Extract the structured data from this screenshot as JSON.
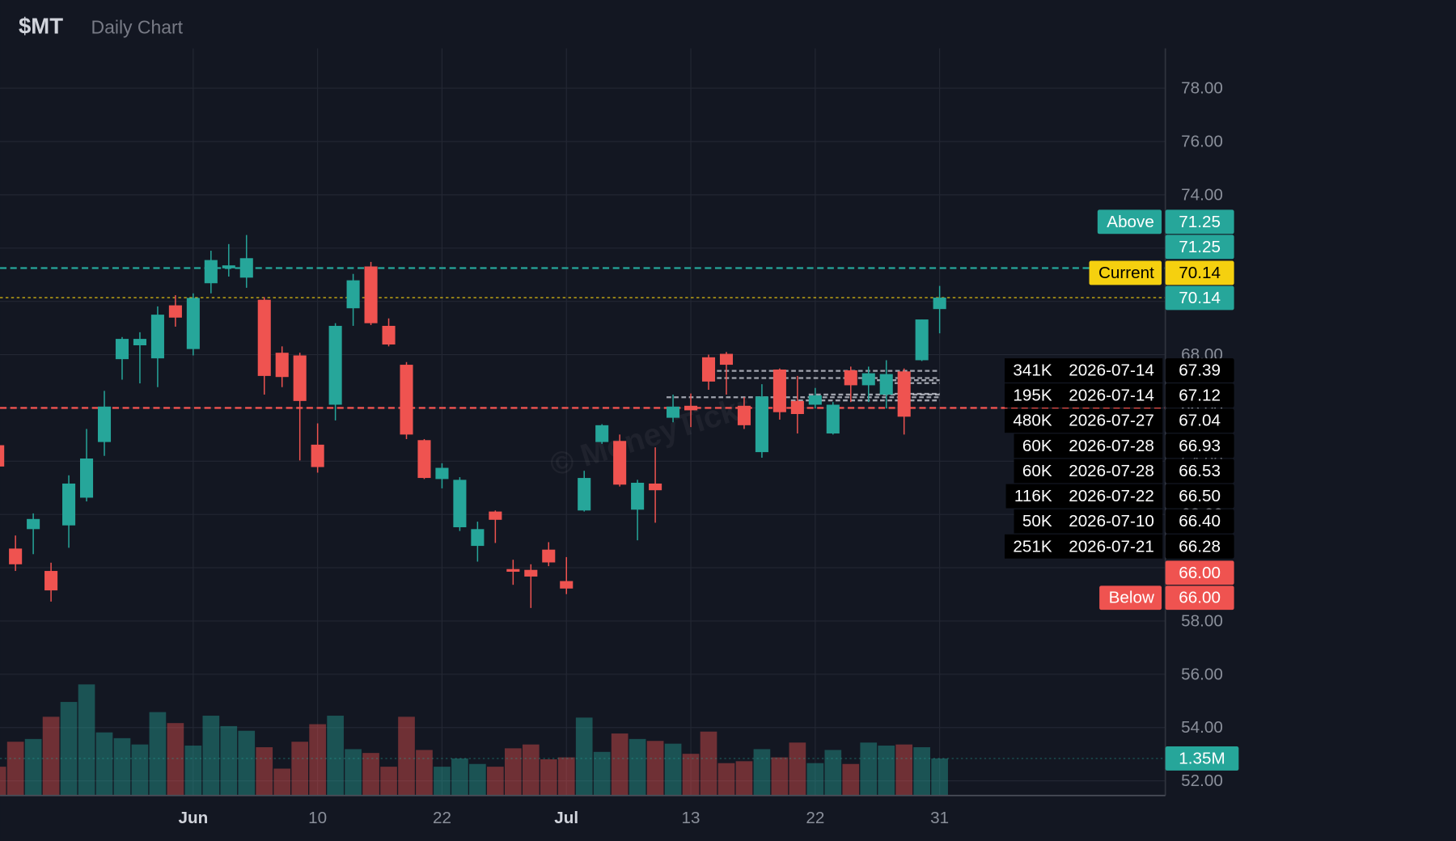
{
  "chart_data": {
    "type": "candlestick",
    "title": "$MT",
    "subtitle": "Daily Chart",
    "watermark": "© MoneyTickr",
    "categories": [
      "2026-05-14",
      "2026-05-15",
      "2026-05-18",
      "2026-05-19",
      "2026-05-20",
      "2026-05-21",
      "2026-05-22",
      "2026-05-26",
      "2026-05-27",
      "2026-05-28",
      "2026-05-29",
      "2026-06-01",
      "2026-06-02",
      "2026-06-03",
      "2026-06-04",
      "2026-06-05",
      "2026-06-08",
      "2026-06-09",
      "2026-06-10",
      "2026-06-11",
      "2026-06-12",
      "2026-06-15",
      "2026-06-16",
      "2026-06-17",
      "2026-06-18",
      "2026-06-22",
      "2026-06-23",
      "2026-06-24",
      "2026-06-25",
      "2026-06-26",
      "2026-06-29",
      "2026-06-30",
      "2026-07-01",
      "2026-07-02",
      "2026-07-06",
      "2026-07-07",
      "2026-07-08",
      "2026-07-09",
      "2026-07-10",
      "2026-07-13",
      "2026-07-14",
      "2026-07-15",
      "2026-07-16",
      "2026-07-17",
      "2026-07-20",
      "2026-07-21",
      "2026-07-22",
      "2026-07-23",
      "2026-07-24",
      "2026-07-27",
      "2026-07-28",
      "2026-07-29",
      "2026-07-30",
      "2026-07-31"
    ],
    "xticks": [
      {
        "value": "2026-06-01",
        "label": "Jun"
      },
      {
        "value": "2026-06-10",
        "label": "10"
      },
      {
        "value": "2026-06-22",
        "label": "22"
      },
      {
        "value": "2026-07-01",
        "label": "Jul"
      },
      {
        "value": "2026-07-13",
        "label": "13"
      },
      {
        "value": "2026-07-22",
        "label": "22"
      },
      {
        "value": "2026-07-31",
        "label": "31"
      }
    ],
    "open": [
      64.6,
      60.72,
      61.45,
      59.88,
      61.59,
      62.63,
      64.72,
      67.83,
      68.35,
      67.86,
      69.85,
      68.21,
      70.68,
      71.24,
      70.89,
      70.06,
      68.07,
      67.97,
      64.62,
      66.12,
      69.74,
      71.31,
      69.08,
      67.62,
      64.79,
      63.33,
      61.52,
      60.82,
      62.11,
      59.95,
      59.92,
      60.68,
      59.5,
      62.15,
      64.72,
      64.76,
      62.18,
      63.16,
      65.63,
      66.08,
      67.9,
      68.03,
      66.08,
      64.34,
      67.44,
      66.26,
      66.12,
      65.04,
      67.41,
      66.85,
      66.5,
      67.37,
      67.79,
      69.71
    ],
    "high": [
      64.7,
      61.21,
      62.04,
      60.19,
      63.47,
      65.21,
      66.64,
      68.66,
      68.84,
      69.81,
      70.23,
      70.3,
      71.9,
      72.15,
      72.49,
      70.16,
      68.31,
      68.07,
      65.42,
      69.18,
      71.03,
      71.48,
      69.36,
      67.72,
      64.83,
      63.92,
      63.4,
      61.73,
      62.15,
      60.3,
      60.13,
      60.96,
      60.4,
      63.64,
      65.39,
      65.0,
      63.3,
      64.52,
      66.5,
      66.54,
      68.0,
      68.1,
      66.4,
      66.89,
      67.48,
      67.2,
      66.75,
      66.22,
      67.55,
      67.55,
      67.79,
      67.48,
      69.32,
      70.58
    ],
    "low": [
      63.7,
      59.88,
      60.51,
      58.73,
      60.75,
      62.49,
      64.2,
      67.06,
      66.92,
      66.78,
      69.05,
      67.97,
      70.3,
      70.93,
      70.51,
      66.5,
      66.78,
      64.03,
      63.57,
      65.53,
      69.08,
      69.11,
      68.31,
      64.83,
      63.33,
      62.98,
      61.38,
      60.23,
      60.93,
      59.36,
      58.49,
      60.06,
      59.01,
      62.11,
      64.65,
      63.05,
      61.03,
      61.69,
      65.46,
      65.28,
      66.68,
      66.5,
      65.21,
      64.13,
      65.56,
      65.04,
      65.98,
      65.0,
      66.22,
      66.22,
      65.98,
      65.0,
      67.76,
      68.8
    ],
    "close": [
      63.8,
      60.13,
      61.83,
      59.15,
      63.16,
      64.1,
      66.05,
      68.59,
      68.59,
      69.5,
      69.39,
      70.13,
      71.55,
      71.35,
      71.62,
      67.2,
      67.16,
      66.26,
      63.78,
      69.08,
      70.79,
      69.18,
      68.38,
      65.0,
      63.37,
      63.75,
      63.3,
      61.45,
      61.8,
      59.85,
      59.67,
      60.2,
      59.22,
      63.37,
      65.35,
      63.12,
      63.19,
      62.91,
      66.05,
      65.91,
      66.99,
      67.62,
      65.35,
      66.43,
      65.84,
      65.77,
      66.47,
      66.12,
      66.85,
      67.3,
      67.27,
      65.67,
      69.32,
      70.14
    ],
    "volume": [
      1.05,
      1.96,
      2.06,
      2.87,
      3.41,
      4.05,
      2.3,
      2.09,
      1.86,
      3.04,
      2.64,
      1.82,
      2.91,
      2.53,
      2.36,
      1.76,
      0.98,
      1.96,
      2.6,
      2.91,
      1.69,
      1.55,
      1.05,
      2.87,
      1.66,
      1.05,
      1.35,
      1.15,
      1.05,
      1.72,
      1.86,
      1.32,
      1.39,
      2.84,
      1.59,
      2.26,
      2.06,
      1.99,
      1.89,
      1.52,
      2.33,
      1.18,
      1.25,
      1.69,
      1.39,
      1.93,
      1.18,
      1.66,
      1.15,
      1.93,
      1.82,
      1.86,
      1.76,
      1.35
    ],
    "volume_last": {
      "value": 1.35,
      "label": "1.35M"
    },
    "volume_ylim": [
      0,
      4.5
    ],
    "up_color": "#26a69a",
    "down_color": "#ef5350",
    "ylim": [
      51.45,
      79.5
    ],
    "yticks": [
      {
        "value": 52,
        "label": "52.00"
      },
      {
        "value": 54,
        "label": "54.00"
      },
      {
        "value": 56,
        "label": "56.00"
      },
      {
        "value": 58,
        "label": "58.00"
      },
      {
        "value": 60,
        "label": "60.00"
      },
      {
        "value": 62,
        "label": "62.00"
      },
      {
        "value": 64,
        "label": "64.00"
      },
      {
        "value": 66,
        "label": "66.00"
      },
      {
        "value": 68,
        "label": "68.00"
      },
      {
        "value": 70,
        "label": "70.00"
      },
      {
        "value": 72,
        "label": "72.00"
      },
      {
        "value": 74,
        "label": "74.00"
      },
      {
        "value": 76,
        "label": "76.00"
      },
      {
        "value": 78,
        "label": "78.00"
      }
    ],
    "grid": true,
    "price_lines": [
      {
        "name": "Above",
        "price": 71.25,
        "color": "#26a69a"
      },
      {
        "name": "Current",
        "price": 70.14,
        "color": "#f5d00f"
      },
      {
        "name": "Below",
        "price": {
          "value": 66,
          "label": "66.00"
        },
        "color": "#ef5350"
      }
    ],
    "levels": [
      {
        "volume": "341K",
        "date": "2026-07-14",
        "price": 67.39
      },
      {
        "volume": "195K",
        "date": "2026-07-14",
        "price": 67.12
      },
      {
        "volume": "480K",
        "date": "2026-07-27",
        "price": 67.04
      },
      {
        "volume": "60K",
        "date": "2026-07-28",
        "price": 66.93
      },
      {
        "volume": "60K",
        "date": "2026-07-28",
        "price": 66.53
      },
      {
        "volume": "116K",
        "date": "2026-07-22",
        "price": {
          "value": 66.5,
          "label": "66.50"
        }
      },
      {
        "volume": "50K",
        "date": "2026-07-10",
        "price": {
          "value": 66.4,
          "label": "66.40"
        }
      },
      {
        "volume": "251K",
        "date": "2026-07-21",
        "price": 66.28
      }
    ]
  }
}
